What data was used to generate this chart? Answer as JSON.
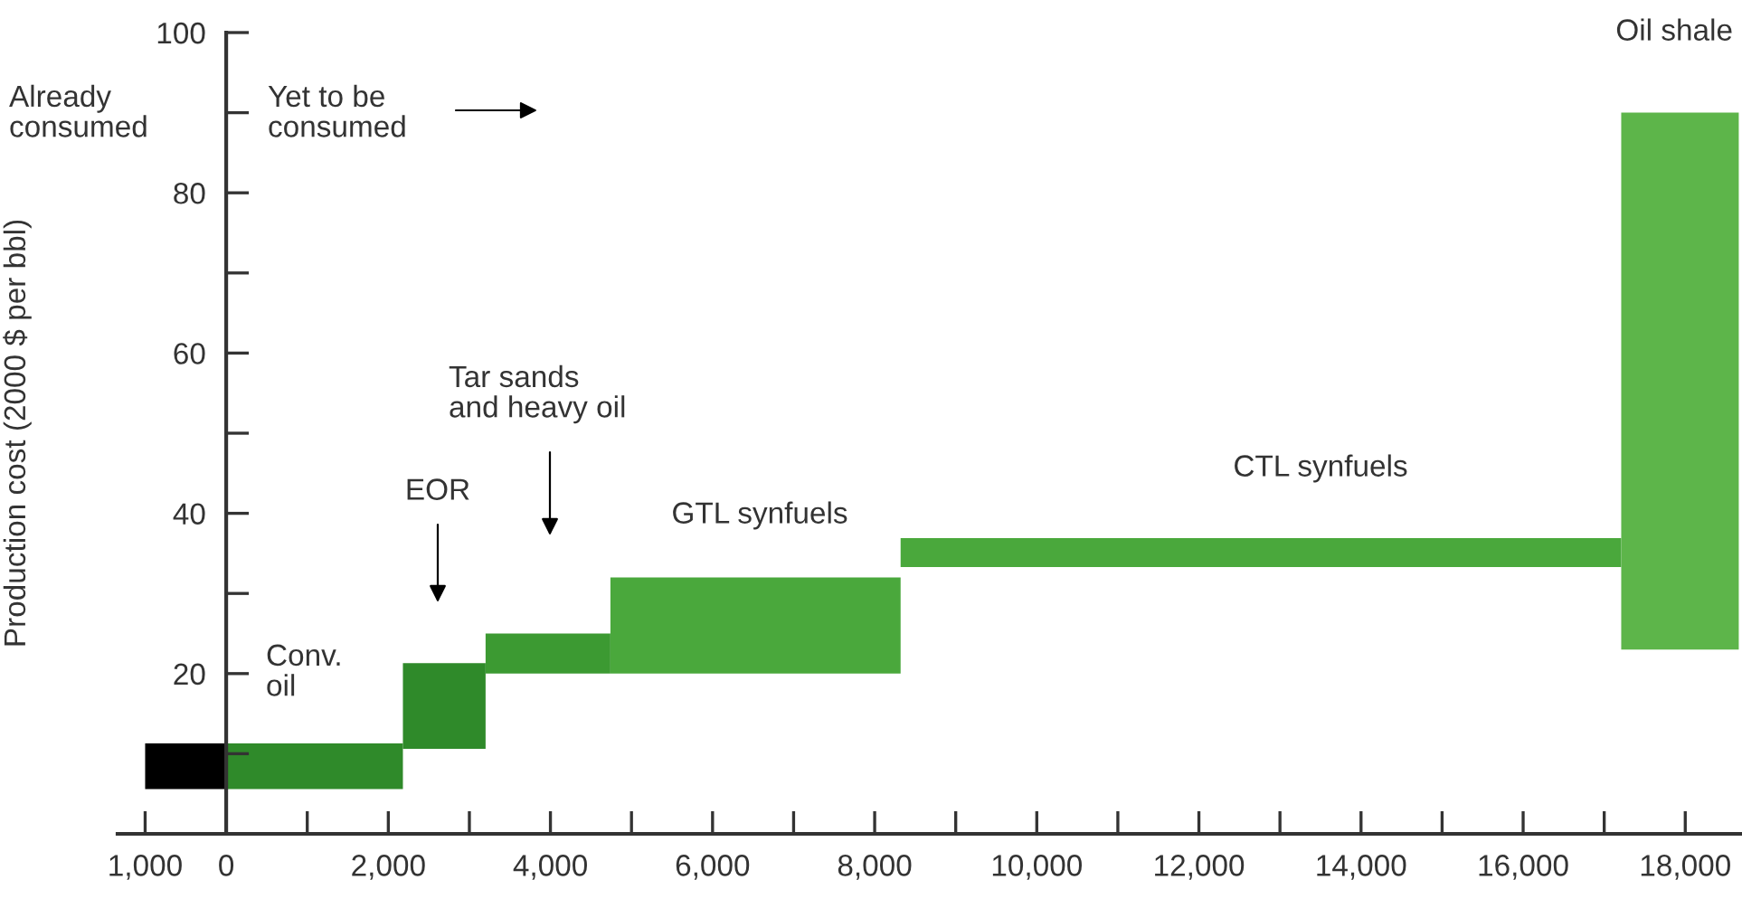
{
  "chart_data": {
    "type": "histogram",
    "ylabel": "Production cost (2000 $ per bbl)",
    "bins": [
      -1000,
      0,
      2180,
      3200,
      4740,
      8320,
      17210,
      18660
    ],
    "base": [
      5.6,
      5.6,
      10.6,
      20,
      20,
      33.3,
      23
    ],
    "values": [
      5.7,
      5.7,
      10.7,
      5,
      12,
      3.6,
      67
    ],
    "colors": [
      "#000000",
      "#2f8a2a",
      "#2f8a2a",
      "#3c9a32",
      "#4aa83c",
      "#4aa83c",
      "#5db54a"
    ],
    "xlim": [
      -1340,
      18700
    ],
    "xticks": [
      {
        "value": -1000,
        "label": "1,000"
      },
      0,
      {
        "value": 1000,
        "label": null
      },
      {
        "value": 2000,
        "label": "2,000"
      },
      {
        "value": 3000,
        "label": null
      },
      {
        "value": 4000,
        "label": "4,000"
      },
      {
        "value": 5000,
        "label": null
      },
      {
        "value": 6000,
        "label": "6,000"
      },
      {
        "value": 7000,
        "label": null
      },
      {
        "value": 8000,
        "label": "8,000"
      },
      {
        "value": 9000,
        "label": null
      },
      {
        "value": 10000,
        "label": "10,000"
      },
      {
        "value": 11000,
        "label": null
      },
      {
        "value": 12000,
        "label": "12,000"
      },
      {
        "value": 13000,
        "label": null
      },
      {
        "value": 14000,
        "label": "14,000"
      },
      {
        "value": 15000,
        "label": null
      },
      {
        "value": 16000,
        "label": "16,000"
      },
      {
        "value": 17000,
        "label": null
      },
      {
        "value": 18000,
        "label": "18,000"
      }
    ],
    "ylim": [
      0,
      100
    ],
    "yticks": [
      {
        "value": 10,
        "label": null
      },
      20,
      {
        "value": 30,
        "label": null
      },
      40,
      {
        "value": 50,
        "label": null
      },
      60,
      {
        "value": 70,
        "label": null
      },
      80,
      {
        "value": 90,
        "label": null
      },
      100
    ],
    "annotations": [
      "Already consumed",
      "Yet to be consumed",
      "Conv. oil",
      "EOR",
      "Tar sands and heavy oil",
      "GTL synfuels",
      "CTL synfuels",
      "Oil shale"
    ]
  }
}
